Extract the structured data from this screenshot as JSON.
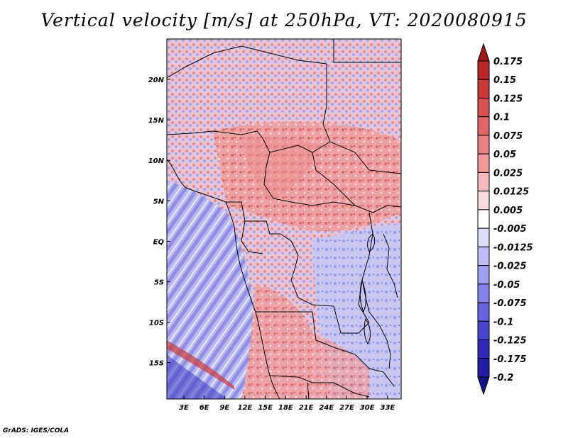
{
  "title": "Vertical velocity [m/s] at 250hPa, VT: 2020080915",
  "credit": "GrADS: IGES/COLA",
  "lat_labels": [
    "20N",
    "15N",
    "10N",
    "5N",
    "EQ",
    "5S",
    "10S",
    "15S"
  ],
  "lat_values": [
    20,
    15,
    10,
    5,
    0,
    -5,
    -10,
    -15
  ],
  "lon_labels": [
    "3E",
    "6E",
    "9E",
    "12E",
    "15E",
    "18E",
    "21E",
    "24E",
    "27E",
    "30E",
    "33E"
  ],
  "lon_values": [
    3,
    6,
    9,
    12,
    15,
    18,
    21,
    24,
    27,
    30,
    33
  ],
  "map_extent": {
    "lon": [
      0.5,
      35
    ],
    "lat": [
      -19.5,
      25
    ]
  },
  "colorbar": {
    "levels": [
      "0.175",
      "0.15",
      "0.125",
      "0.1",
      "0.075",
      "0.05",
      "0.025",
      "0.0125",
      "0.005",
      "-0.005",
      "-0.0125",
      "-0.025",
      "-0.05",
      "-0.075",
      "-0.1",
      "-0.125",
      "-0.175",
      "-0.2"
    ],
    "colors": [
      "#a01818",
      "#b82828",
      "#c83a3a",
      "#d65050",
      "#e06666",
      "#ea8080",
      "#f29a9a",
      "#f8baba",
      "#fcdcdc",
      "#ffffff",
      "#dcdcfc",
      "#bcbcf6",
      "#a0a0f0",
      "#8282e8",
      "#6464dc",
      "#4646cc",
      "#2c2cb8",
      "#1e1ea4",
      "#14148a"
    ]
  }
}
